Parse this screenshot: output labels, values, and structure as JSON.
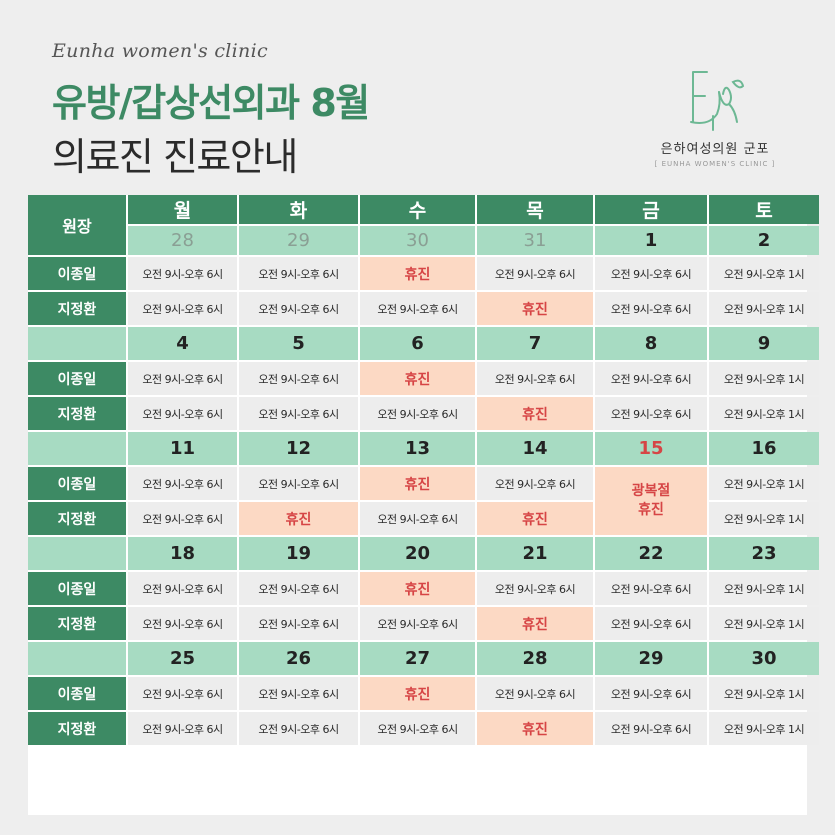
{
  "brand": {
    "script": "Eunha women's clinic"
  },
  "title": {
    "line1": "유방/갑상선외과 8월",
    "line2": "의료진 진료안내"
  },
  "logo": {
    "name": "은하여성의원 군포",
    "subtitle": "[ EUNHA WOMEN'S CLINIC ]"
  },
  "colors": {
    "primary_green": "#3d8a64",
    "light_green": "#a7dbc2",
    "closed_bg": "#fcd9c4",
    "closed_text": "#d64545"
  },
  "schedule": {
    "header_label": "원장",
    "days": [
      "월",
      "화",
      "수",
      "목",
      "금",
      "토"
    ],
    "hours_weekday": "오전 9시-오후 6시",
    "hours_saturday": "오전 9시-오후 1시",
    "closed_label": "휴진",
    "holiday_name": "광복절",
    "holiday_closed": "휴진",
    "doctors": [
      "이종일",
      "지정환"
    ],
    "weeks": [
      {
        "dates": [
          "28",
          "29",
          "30",
          "31",
          "1",
          "2"
        ]
      },
      {
        "dates": [
          "4",
          "5",
          "6",
          "7",
          "8",
          "9"
        ]
      },
      {
        "dates": [
          "11",
          "12",
          "13",
          "14",
          "15",
          "16"
        ]
      },
      {
        "dates": [
          "18",
          "19",
          "20",
          "21",
          "22",
          "23"
        ]
      },
      {
        "dates": [
          "25",
          "26",
          "27",
          "28",
          "29",
          "30"
        ]
      }
    ]
  }
}
